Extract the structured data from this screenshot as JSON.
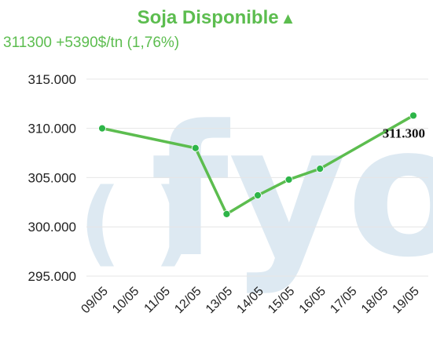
{
  "header": {
    "title": "Soja Disponible",
    "trend_arrow": "▲",
    "price_line": "311300 +5390$/tn (1,76%)"
  },
  "watermark": {
    "left": "( )",
    "text": "fyo"
  },
  "colors": {
    "line": "#5cbd4f",
    "point": "#2db548",
    "title": "#5cbd4f",
    "grid": "#e6e6e6"
  },
  "chart_data": {
    "type": "line",
    "title": "Soja Disponible",
    "xlabel": "",
    "ylabel": "",
    "x_ticks": [
      "09/05",
      "10/05",
      "11/05",
      "12/05",
      "13/05",
      "14/05",
      "15/05",
      "16/05",
      "17/05",
      "18/05",
      "19/05"
    ],
    "y_ticks": [
      "295.000",
      "300.000",
      "305.000",
      "310.000",
      "315.000"
    ],
    "ylim": [
      295000,
      316500
    ],
    "grid": true,
    "series": [
      {
        "x": [
          "09/05",
          "12/05",
          "13/05",
          "14/05",
          "15/05",
          "16/05",
          "19/05"
        ],
        "values": [
          310000,
          308000,
          301300,
          303200,
          304800,
          305900,
          311300
        ]
      }
    ],
    "last_value_label": "311.300"
  }
}
